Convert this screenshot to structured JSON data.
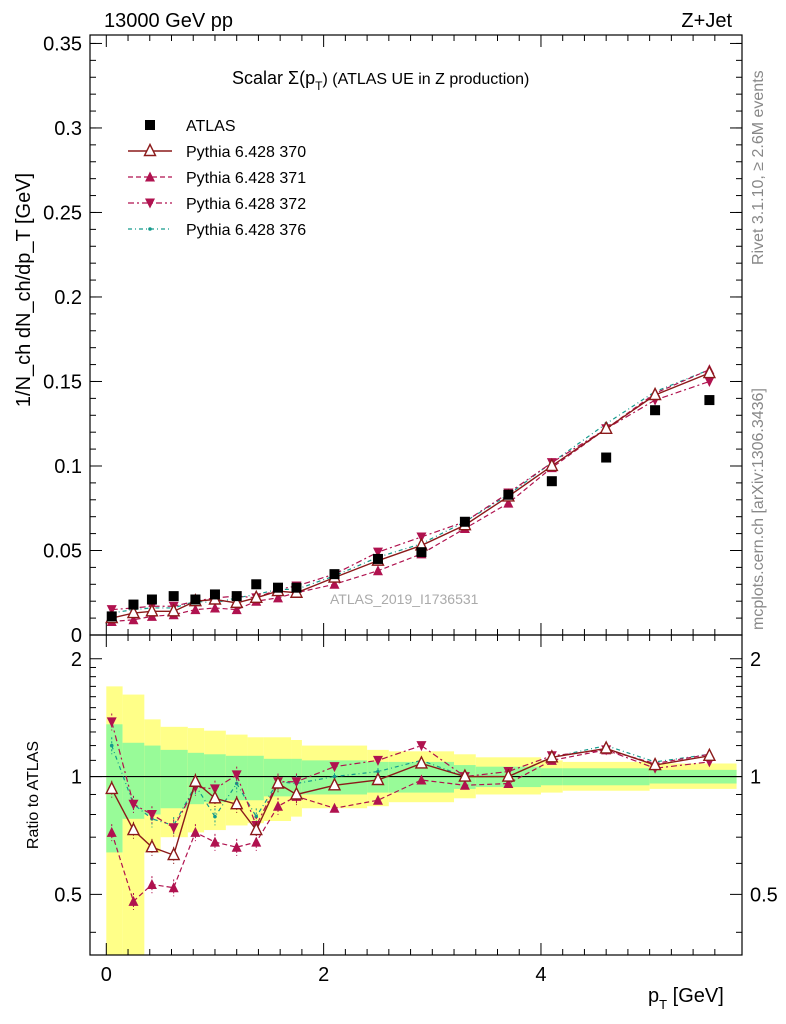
{
  "header": {
    "left": "13000 GeV pp",
    "right": "Z+Jet"
  },
  "side_labels": {
    "rivet": "Rivet 3.1.10, ≥ 2.6M events",
    "mcplots": "mcplots.cern.ch [arXiv:1306.3436]"
  },
  "watermark": "ATLAS_2019_I1736531",
  "colors": {
    "data": "#000000",
    "p370": "#8b1a1a",
    "p371": "#b0124f",
    "p372": "#b0124f",
    "p376": "#159a8c",
    "band_green": "#98fb98",
    "band_yellow": "#ffff88"
  },
  "chart_data": [
    {
      "type": "scatter",
      "title_main": "Scalar Σ(p",
      "title_sub": "T",
      "title_rest": ") (ATLAS UE in Z production)",
      "ylabel": "1/N_ch dN_ch/dp_T [GeV]",
      "xlim": [
        -0.15,
        5.85
      ],
      "ylim": [
        0,
        0.355
      ],
      "yticks": [
        "0",
        "0.05",
        "0.1",
        "0.15",
        "0.2",
        "0.25",
        "0.3",
        "0.35"
      ],
      "x": [
        0.05,
        0.25,
        0.42,
        0.62,
        0.82,
        1.0,
        1.2,
        1.38,
        1.58,
        1.75,
        2.1,
        2.5,
        2.9,
        3.3,
        3.7,
        4.1,
        4.6,
        5.05,
        5.55
      ],
      "legend": [
        "ATLAS",
        "Pythia 6.428 370",
        "Pythia 6.428 371",
        "Pythia 6.428 372",
        "Pythia 6.428 376"
      ],
      "series": [
        {
          "name": "ATLAS",
          "values": [
            0.011,
            0.018,
            0.021,
            0.023,
            0.021,
            0.024,
            0.023,
            0.03,
            0.028,
            0.028,
            0.036,
            0.045,
            0.049,
            0.067,
            0.083,
            0.091,
            0.105,
            0.133,
            0.139
          ]
        },
        {
          "name": "Pythia 6.428 370",
          "values": [
            0.01,
            0.013,
            0.014,
            0.014,
            0.02,
            0.021,
            0.019,
            0.022,
            0.026,
            0.025,
            0.034,
            0.044,
            0.053,
            0.065,
            0.082,
            0.1,
            0.122,
            0.142,
            0.155
          ]
        },
        {
          "name": "Pythia 6.428 371",
          "values": [
            0.008,
            0.009,
            0.011,
            0.012,
            0.015,
            0.016,
            0.015,
            0.02,
            0.022,
            0.025,
            0.03,
            0.038,
            0.048,
            0.063,
            0.078,
            0.099,
            0.122,
            0.143,
            0.157
          ]
        },
        {
          "name": "Pythia 6.428 372",
          "values": [
            0.015,
            0.016,
            0.017,
            0.017,
            0.02,
            0.022,
            0.023,
            0.022,
            0.027,
            0.029,
            0.036,
            0.049,
            0.058,
            0.067,
            0.084,
            0.102,
            0.122,
            0.139,
            0.15
          ]
        },
        {
          "name": "Pythia 6.428 376",
          "values": [
            0.013,
            0.015,
            0.016,
            0.016,
            0.02,
            0.019,
            0.022,
            0.024,
            0.027,
            0.027,
            0.035,
            0.046,
            0.054,
            0.067,
            0.083,
            0.102,
            0.125,
            0.144,
            0.157
          ]
        }
      ]
    },
    {
      "type": "scatter",
      "ylabel": "Ratio to ATLAS",
      "xlabel_main": "p",
      "xlabel_sub": "T",
      "xlabel_rest": " [GeV]",
      "xlim": [
        -0.15,
        5.85
      ],
      "ylim": [
        0.35,
        2.3
      ],
      "xticks": [
        "0",
        "2",
        "4"
      ],
      "yticks": [
        "0.5",
        "1",
        "2"
      ],
      "x": [
        0.05,
        0.25,
        0.42,
        0.62,
        0.82,
        1.0,
        1.2,
        1.38,
        1.58,
        1.75,
        2.1,
        2.5,
        2.9,
        3.3,
        3.7,
        4.1,
        4.6,
        5.05,
        5.55
      ],
      "bin_edges": [
        0.0,
        0.15,
        0.35,
        0.5,
        0.75,
        0.9,
        1.1,
        1.3,
        1.45,
        1.7,
        1.8,
        2.4,
        2.6,
        3.2,
        3.4,
        4.0,
        4.2,
        5.0,
        5.1,
        5.8
      ],
      "band_green": [
        [
          0.64,
          1.36
        ],
        [
          0.78,
          1.22
        ],
        [
          0.8,
          1.2
        ],
        [
          0.83,
          1.17
        ],
        [
          0.85,
          1.15
        ],
        [
          0.86,
          1.14
        ],
        [
          0.87,
          1.13
        ],
        [
          0.87,
          1.13
        ],
        [
          0.89,
          1.11
        ],
        [
          0.89,
          1.11
        ],
        [
          0.9,
          1.1
        ],
        [
          0.91,
          1.09
        ],
        [
          0.91,
          1.09
        ],
        [
          0.93,
          1.07
        ],
        [
          0.94,
          1.06
        ],
        [
          0.95,
          1.05
        ],
        [
          0.95,
          1.05
        ],
        [
          0.96,
          1.04
        ],
        [
          0.96,
          1.04
        ]
      ],
      "band_yellow": [
        [
          0.3,
          1.7
        ],
        [
          0.3,
          1.62
        ],
        [
          0.64,
          1.4
        ],
        [
          0.7,
          1.34
        ],
        [
          0.72,
          1.33
        ],
        [
          0.73,
          1.31
        ],
        [
          0.75,
          1.28
        ],
        [
          0.76,
          1.26
        ],
        [
          0.77,
          1.26
        ],
        [
          0.79,
          1.24
        ],
        [
          0.83,
          1.2
        ],
        [
          0.84,
          1.17
        ],
        [
          0.86,
          1.16
        ],
        [
          0.88,
          1.14
        ],
        [
          0.9,
          1.12
        ],
        [
          0.91,
          1.1
        ],
        [
          0.92,
          1.09
        ],
        [
          0.93,
          1.08
        ],
        [
          0.93,
          1.08
        ]
      ],
      "series": [
        {
          "name": "Pythia 6.428 370",
          "values": [
            0.93,
            0.73,
            0.66,
            0.63,
            0.97,
            0.88,
            0.85,
            0.73,
            0.96,
            0.9,
            0.95,
            0.98,
            1.08,
            1.0,
            1.0,
            1.12,
            1.18,
            1.07,
            1.13
          ]
        },
        {
          "name": "Pythia 6.428 371",
          "values": [
            0.72,
            0.48,
            0.53,
            0.52,
            0.72,
            0.68,
            0.66,
            0.68,
            0.84,
            0.89,
            0.83,
            0.87,
            0.98,
            0.95,
            0.96,
            1.1,
            1.17,
            1.08,
            1.14
          ]
        },
        {
          "name": "Pythia 6.428 372",
          "values": [
            1.38,
            0.85,
            0.8,
            0.74,
            0.94,
            0.93,
            1.01,
            0.75,
            0.97,
            0.97,
            1.06,
            1.1,
            1.2,
            1.0,
            1.03,
            1.13,
            1.17,
            1.05,
            1.09
          ]
        },
        {
          "name": "Pythia 6.428 376",
          "values": [
            1.2,
            0.85,
            0.78,
            0.75,
            0.95,
            0.79,
            0.96,
            0.79,
            0.97,
            0.96,
            1.0,
            1.03,
            1.1,
            1.0,
            1.0,
            1.12,
            1.2,
            1.09,
            1.14
          ]
        }
      ]
    }
  ]
}
